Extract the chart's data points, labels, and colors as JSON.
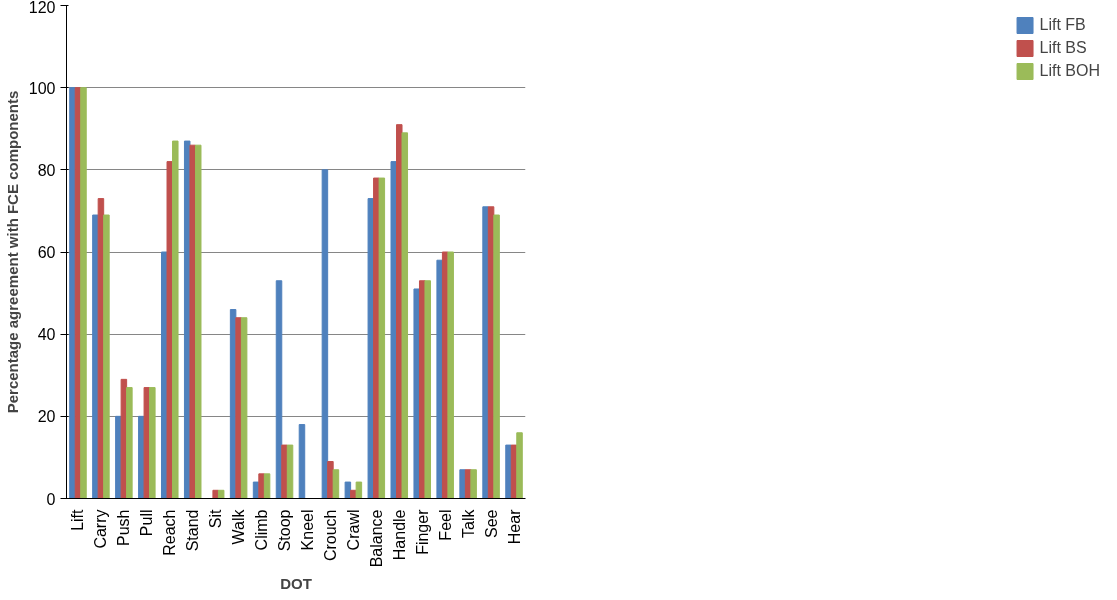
{
  "chart_data": {
    "type": "bar",
    "xlabel": "DOT",
    "ylabel": "Percentage agreement with FCE components",
    "categories": [
      "Lift",
      "Carry",
      "Push",
      "Pull",
      "Reach",
      "Stand",
      "Sit",
      "Walk",
      "Climb",
      "Stoop",
      "Kneel",
      "Crouch",
      "Crawl",
      "Balance",
      "Handle",
      "Finger",
      "Feel",
      "Talk",
      "See",
      "Hear"
    ],
    "series": [
      {
        "name": "Lift FB",
        "color": "#4f81bd",
        "values": [
          100,
          69,
          20,
          20,
          60,
          87,
          0,
          46,
          4,
          53,
          18,
          80,
          4,
          73,
          82,
          51,
          58,
          7,
          71,
          13
        ]
      },
      {
        "name": "Lift BS",
        "color": "#c0504d",
        "values": [
          100,
          73,
          29,
          27,
          82,
          86,
          2,
          44,
          6,
          13,
          0,
          9,
          2,
          78,
          91,
          53,
          60,
          7,
          71,
          13
        ]
      },
      {
        "name": "Lift BOH",
        "color": "#9bbb59",
        "values": [
          100,
          69,
          27,
          27,
          87,
          86,
          2,
          44,
          6,
          13,
          0,
          7,
          4,
          78,
          89,
          53,
          60,
          7,
          69,
          16
        ]
      }
    ],
    "ylim": [
      0,
      120
    ],
    "yticks": [
      0,
      20,
      40,
      60,
      80,
      100,
      120
    ],
    "grid": "y",
    "legend": "right"
  }
}
